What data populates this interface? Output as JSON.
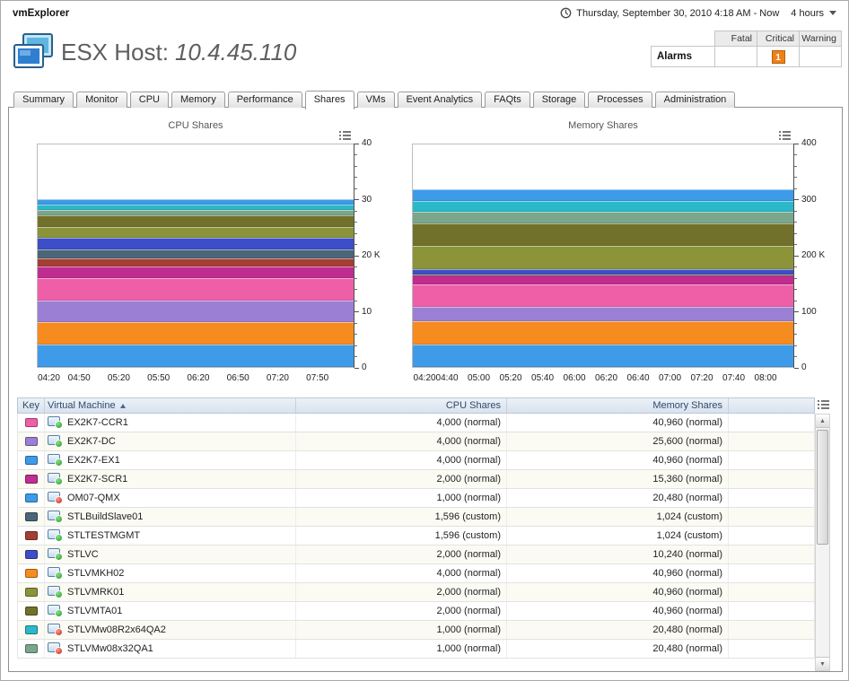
{
  "header_bar": {
    "app_title": "vmExplorer",
    "date_range": "Thursday, September 30, 2010 4:18 AM - Now",
    "duration": "4 hours"
  },
  "page_header": {
    "title_prefix": "ESX Host:",
    "host_ip": "10.4.45.110"
  },
  "alarms": {
    "label": "Alarms",
    "columns": [
      "Fatal",
      "Critical",
      "Warning"
    ],
    "counts": {
      "fatal": "",
      "critical": "1",
      "warning": ""
    },
    "severity_colors": {
      "critical": "#f08018"
    }
  },
  "tabs": {
    "items": [
      "Summary",
      "Monitor",
      "CPU",
      "Memory",
      "Performance",
      "Shares",
      "VMs",
      "Event Analytics",
      "FAQts",
      "Storage",
      "Processes",
      "Administration"
    ],
    "active": "Shares"
  },
  "icons": {
    "scroll_up": "▲",
    "scroll_down": "▼"
  },
  "chart_data": [
    {
      "type": "area",
      "stacked": true,
      "title": "CPU Shares",
      "unit": "K",
      "ylim": [
        0,
        40
      ],
      "yticks": [
        {
          "v": 0,
          "label": "0"
        },
        {
          "v": 10,
          "label": "10"
        },
        {
          "v": 20,
          "label": "20 K"
        },
        {
          "v": 30,
          "label": "30"
        },
        {
          "v": 40,
          "label": "40"
        }
      ],
      "minor_step": 2,
      "x_start": "04:18",
      "x_span_minutes": 240,
      "xticks": [
        "04:20",
        "04:50",
        "05:20",
        "05:50",
        "06:20",
        "06:50",
        "07:20",
        "07:50"
      ],
      "series": [
        {
          "name": "EX2K7-EX1",
          "color": "#3d9be9",
          "value": 4
        },
        {
          "name": "STLVMKH02",
          "color": "#f68b1f",
          "value": 4
        },
        {
          "name": "EX2K7-DC",
          "color": "#9b7fd4",
          "value": 4
        },
        {
          "name": "EX2K7-CCR1",
          "color": "#ef5fa7",
          "value": 4
        },
        {
          "name": "EX2K7-SCR1",
          "color": "#c02d90",
          "value": 2
        },
        {
          "name": "STLTESTMGMT",
          "color": "#a33e33",
          "value": 1.596
        },
        {
          "name": "STLBuildSlave01",
          "color": "#4a6678",
          "value": 1.596
        },
        {
          "name": "STLVC",
          "color": "#3c4ec8",
          "value": 2
        },
        {
          "name": "STLVMRK01",
          "color": "#8b9439",
          "value": 2
        },
        {
          "name": "STLVMTA01",
          "color": "#71712c",
          "value": 2
        },
        {
          "name": "STLVMw08x32QA1",
          "color": "#7aa68c",
          "value": 1
        },
        {
          "name": "STLVMw08R2x64QA2",
          "color": "#2bb8c8",
          "value": 1
        },
        {
          "name": "OM07-QMX",
          "color": "#3d9be9",
          "value": 1
        }
      ]
    },
    {
      "type": "area",
      "stacked": true,
      "title": "Memory Shares",
      "unit": "K",
      "ylim": [
        0,
        400
      ],
      "yticks": [
        {
          "v": 0,
          "label": "0"
        },
        {
          "v": 100,
          "label": "100"
        },
        {
          "v": 200,
          "label": "200 K"
        },
        {
          "v": 300,
          "label": "300"
        },
        {
          "v": 400,
          "label": "400"
        }
      ],
      "minor_step": 20,
      "x_start": "04:18",
      "x_span_minutes": 240,
      "xticks": [
        "04:20",
        "04:40",
        "05:00",
        "05:20",
        "05:40",
        "06:00",
        "06:20",
        "06:40",
        "07:00",
        "07:20",
        "07:40",
        "08:00"
      ],
      "series": [
        {
          "name": "EX2K7-EX1",
          "color": "#3d9be9",
          "value": 40.96
        },
        {
          "name": "STLVMKH02",
          "color": "#f68b1f",
          "value": 40.96
        },
        {
          "name": "EX2K7-DC",
          "color": "#9b7fd4",
          "value": 25.6
        },
        {
          "name": "EX2K7-CCR1",
          "color": "#ef5fa7",
          "value": 40.96
        },
        {
          "name": "EX2K7-SCR1",
          "color": "#c02d90",
          "value": 15.36
        },
        {
          "name": "STLTESTMGMT",
          "color": "#a33e33",
          "value": 1.024
        },
        {
          "name": "STLBuildSlave01",
          "color": "#4a6678",
          "value": 1.024
        },
        {
          "name": "STLVC",
          "color": "#3c4ec8",
          "value": 10.24
        },
        {
          "name": "STLVMRK01",
          "color": "#8b9439",
          "value": 40.96
        },
        {
          "name": "STLVMTA01",
          "color": "#71712c",
          "value": 40.96
        },
        {
          "name": "STLVMw08x32QA1",
          "color": "#7aa68c",
          "value": 20.48
        },
        {
          "name": "STLVMw08R2x64QA2",
          "color": "#2bb8c8",
          "value": 20.48
        },
        {
          "name": "OM07-QMX",
          "color": "#3d9be9",
          "value": 20.48
        }
      ]
    }
  ],
  "table": {
    "columns": [
      "Key",
      "Virtual Machine",
      "CPU Shares",
      "Memory Shares"
    ],
    "sort_column": "Virtual Machine",
    "sort_direction": "asc",
    "rows": [
      {
        "color": "#ef5fa7",
        "status": "on",
        "name": "EX2K7-CCR1",
        "cpu": "4,000 (normal)",
        "mem": "40,960 (normal)"
      },
      {
        "color": "#9b7fd4",
        "status": "on",
        "name": "EX2K7-DC",
        "cpu": "4,000 (normal)",
        "mem": "25,600 (normal)"
      },
      {
        "color": "#3d9be9",
        "status": "on",
        "name": "EX2K7-EX1",
        "cpu": "4,000 (normal)",
        "mem": "40,960 (normal)"
      },
      {
        "color": "#c02d90",
        "status": "on",
        "name": "EX2K7-SCR1",
        "cpu": "2,000 (normal)",
        "mem": "15,360 (normal)"
      },
      {
        "color": "#3d9be9",
        "status": "off",
        "name": "OM07-QMX",
        "cpu": "1,000 (normal)",
        "mem": "20,480 (normal)"
      },
      {
        "color": "#4a6678",
        "status": "on",
        "name": "STLBuildSlave01",
        "cpu": "1,596 (custom)",
        "mem": "1,024 (custom)"
      },
      {
        "color": "#a33e33",
        "status": "on",
        "name": "STLTESTMGMT",
        "cpu": "1,596 (custom)",
        "mem": "1,024 (custom)"
      },
      {
        "color": "#3c4ec8",
        "status": "on",
        "name": "STLVC",
        "cpu": "2,000 (normal)",
        "mem": "10,240 (normal)"
      },
      {
        "color": "#f68b1f",
        "status": "on",
        "name": "STLVMKH02",
        "cpu": "4,000 (normal)",
        "mem": "40,960 (normal)"
      },
      {
        "color": "#8b9439",
        "status": "on",
        "name": "STLVMRK01",
        "cpu": "2,000 (normal)",
        "mem": "40,960 (normal)"
      },
      {
        "color": "#71712c",
        "status": "on",
        "name": "STLVMTA01",
        "cpu": "2,000 (normal)",
        "mem": "40,960 (normal)"
      },
      {
        "color": "#2bb8c8",
        "status": "off",
        "name": "STLVMw08R2x64QA2",
        "cpu": "1,000 (normal)",
        "mem": "20,480 (normal)"
      },
      {
        "color": "#7aa68c",
        "status": "off",
        "name": "STLVMw08x32QA1",
        "cpu": "1,000 (normal)",
        "mem": "20,480 (normal)"
      }
    ]
  }
}
